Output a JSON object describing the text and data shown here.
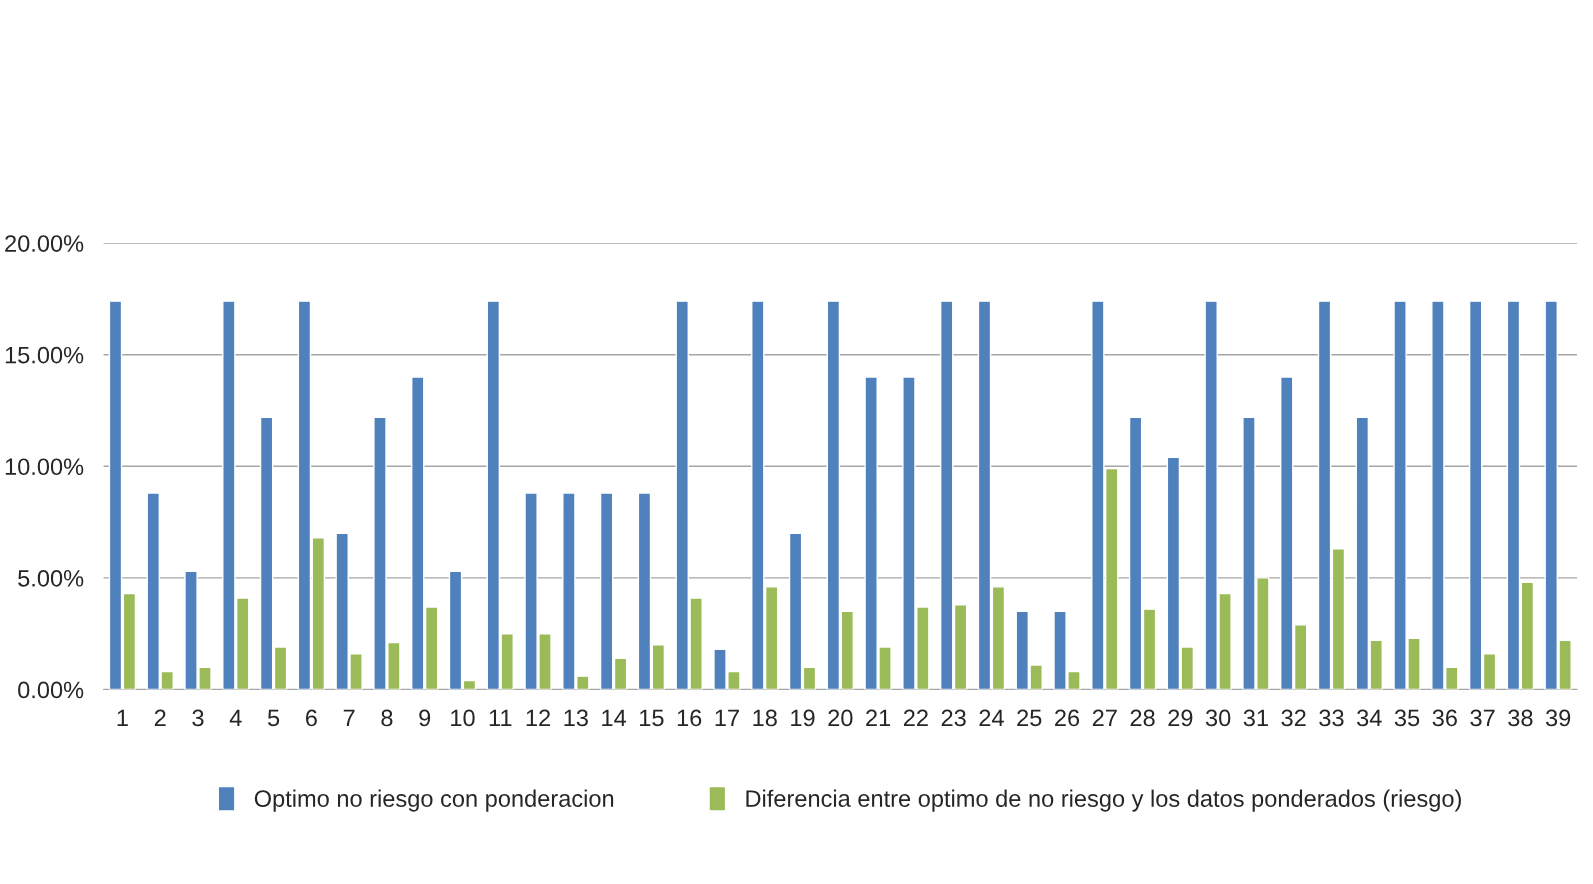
{
  "chart_data": {
    "type": "bar",
    "categories": [
      "1",
      "2",
      "3",
      "4",
      "5",
      "6",
      "7",
      "8",
      "9",
      "10",
      "11",
      "12",
      "13",
      "14",
      "15",
      "16",
      "17",
      "18",
      "19",
      "20",
      "21",
      "22",
      "23",
      "24",
      "25",
      "26",
      "27",
      "28",
      "29",
      "30",
      "31",
      "32",
      "33",
      "34",
      "35",
      "36",
      "37",
      "38",
      "39"
    ],
    "series": [
      {
        "name": "Optimo no riesgo con ponderacion",
        "color": "#4f81bd",
        "values": [
          17.4,
          8.8,
          5.3,
          17.4,
          12.2,
          17.4,
          7.0,
          12.2,
          14.0,
          5.3,
          17.4,
          8.8,
          8.8,
          8.8,
          8.8,
          17.4,
          1.8,
          17.4,
          7.0,
          17.4,
          14.0,
          14.0,
          17.4,
          17.4,
          3.5,
          3.5,
          17.4,
          12.2,
          10.4,
          17.4,
          12.2,
          14.0,
          17.4,
          12.2,
          17.4,
          17.4,
          17.4,
          17.4,
          17.4
        ]
      },
      {
        "name": "Diferencia entre optimo de no riesgo y los datos ponderados (riesgo)",
        "color": "#9bbb59",
        "values": [
          4.3,
          0.8,
          1.0,
          4.1,
          1.9,
          6.8,
          1.6,
          2.1,
          3.7,
          0.4,
          2.5,
          2.5,
          0.6,
          1.4,
          2.0,
          4.1,
          0.8,
          4.6,
          1.0,
          3.5,
          1.9,
          3.7,
          3.8,
          4.6,
          1.1,
          0.8,
          9.9,
          3.6,
          1.9,
          4.3,
          5.0,
          2.9,
          6.3,
          2.2,
          2.3,
          1.0,
          1.6,
          4.8,
          2.2
        ]
      }
    ],
    "ylim": [
      0,
      20
    ],
    "yticks": [
      {
        "value": 0,
        "label": "0.00%"
      },
      {
        "value": 5,
        "label": "5.00%"
      },
      {
        "value": 10,
        "label": "10.00%"
      },
      {
        "value": 15,
        "label": "15.00%"
      },
      {
        "value": 20,
        "label": "20.00%"
      }
    ],
    "grid": "y",
    "legend": "bottom"
  }
}
